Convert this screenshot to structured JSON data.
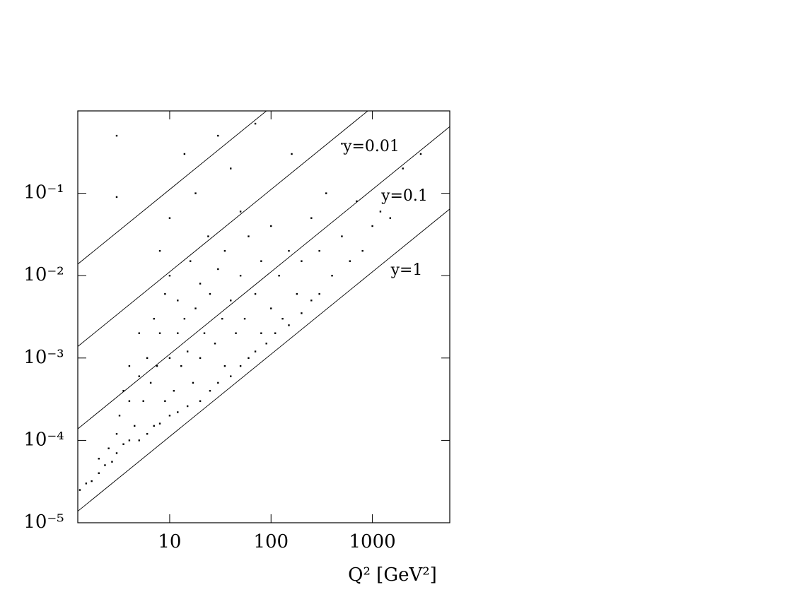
{
  "chart_data": {
    "type": "scatter",
    "xlabel": "Q² [GeV²]",
    "xlog": true,
    "ylog": true,
    "xlim": [
      1.24,
      5800
    ],
    "ylim": [
      1e-05,
      1
    ],
    "xticks": [
      10,
      100,
      1000
    ],
    "yticks": [
      {
        "value": 1e-05,
        "label": "10⁻⁵"
      },
      {
        "value": 0.0001,
        "label": "10⁻⁴"
      },
      {
        "value": 0.001,
        "label": "10⁻³"
      },
      {
        "value": 0.01,
        "label": "10⁻²"
      },
      {
        "value": 0.1,
        "label": "10⁻¹"
      }
    ],
    "color": "#000000",
    "lines": [
      {
        "label": "y=1",
        "x": [
          1.24,
          5800
        ],
        "y": [
          1.38e-05,
          0.0644
        ]
      },
      {
        "label": "y=0.1",
        "x": [
          1.24,
          5800
        ],
        "y": [
          0.000138,
          0.644
        ]
      },
      {
        "label": "y=0.01",
        "x": [
          1.24,
          1000
        ],
        "y": [
          0.00138,
          1.11
        ]
      },
      {
        "label": null,
        "x": [
          1.24,
          100
        ],
        "y": [
          0.0138,
          1.11
        ]
      }
    ],
    "x": [
      1.3,
      1.5,
      1.7,
      2,
      2,
      2.3,
      2.5,
      2.7,
      3,
      3,
      3.2,
      3.5,
      3.5,
      4,
      4,
      4,
      4.5,
      5,
      5,
      5,
      5.5,
      6,
      6,
      6.5,
      7,
      7,
      7.5,
      8,
      8,
      8,
      9,
      9,
      10,
      10,
      10,
      10,
      11,
      12,
      12,
      12,
      13,
      14,
      14,
      15,
      15,
      16,
      17,
      18,
      18,
      20,
      20,
      20,
      22,
      24,
      25,
      25,
      28,
      30,
      30,
      30,
      33,
      35,
      35,
      40,
      40,
      40,
      45,
      50,
      50,
      50,
      55,
      60,
      60,
      70,
      70,
      70,
      80,
      80,
      90,
      100,
      100,
      110,
      120,
      130,
      150,
      150,
      160,
      180,
      200,
      200,
      250,
      250,
      300,
      300,
      350,
      400,
      500,
      500,
      600,
      700,
      800,
      1000,
      1200,
      1500,
      2000,
      3000,
      3,
      3
    ],
    "y": [
      2.5e-05,
      3e-05,
      3.2e-05,
      4e-05,
      6e-05,
      5e-05,
      8e-05,
      5.5e-05,
      0.00012,
      7e-05,
      0.0002,
      9e-05,
      0.0004,
      0.0001,
      0.0003,
      0.0008,
      0.00015,
      0.0001,
      0.0006,
      0.002,
      0.0003,
      0.00012,
      0.001,
      0.0005,
      0.00015,
      0.003,
      0.0008,
      0.00016,
      0.002,
      0.02,
      0.0003,
      0.006,
      0.0002,
      0.001,
      0.01,
      0.05,
      0.0004,
      0.00022,
      0.002,
      0.005,
      0.0008,
      0.003,
      0.3,
      0.00026,
      0.0012,
      0.015,
      0.0005,
      0.004,
      0.1,
      0.0003,
      0.001,
      0.008,
      0.002,
      0.03,
      0.0004,
      0.006,
      0.0015,
      0.0005,
      0.012,
      0.5,
      0.003,
      0.0008,
      0.02,
      0.0006,
      0.005,
      0.2,
      0.002,
      0.0008,
      0.01,
      0.06,
      0.003,
      0.001,
      0.03,
      0.0012,
      0.006,
      0.7,
      0.002,
      0.015,
      0.0015,
      0.004,
      0.04,
      0.002,
      0.01,
      0.003,
      0.0025,
      0.02,
      0.3,
      0.006,
      0.0035,
      0.015,
      0.005,
      0.05,
      0.006,
      0.02,
      0.1,
      0.01,
      0.03,
      0.4,
      0.015,
      0.08,
      0.02,
      0.04,
      0.06,
      0.05,
      0.2,
      0.3,
      0.5,
      0.09
    ]
  }
}
